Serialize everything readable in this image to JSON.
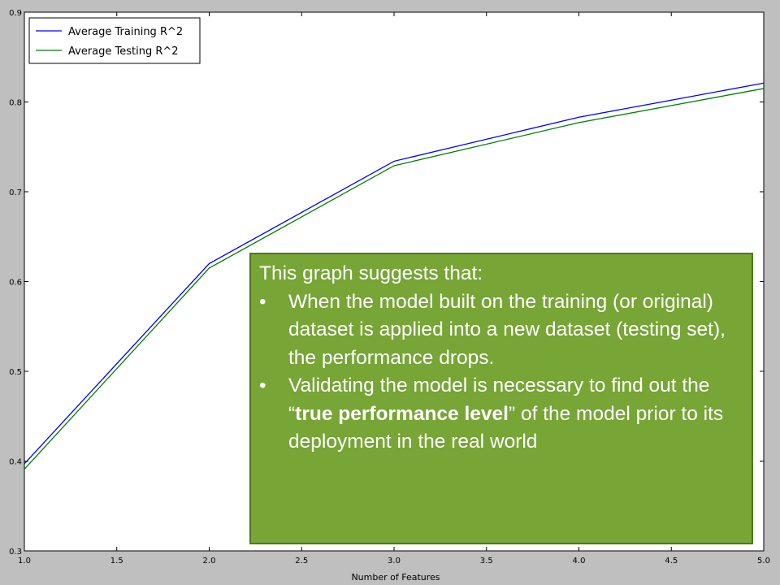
{
  "chart_data": {
    "type": "line",
    "x": [
      1.0,
      2.0,
      3.0,
      4.0,
      5.0
    ],
    "series": [
      {
        "name": "Average Training R^2",
        "color": "#0000ff",
        "values": [
          0.397,
          0.62,
          0.734,
          0.783,
          0.821
        ]
      },
      {
        "name": "Average Testing R^2",
        "color": "#008000",
        "values": [
          0.391,
          0.615,
          0.729,
          0.777,
          0.815
        ]
      }
    ],
    "xlabel": "Number of Features",
    "ylabel": "",
    "xlim": [
      1.0,
      5.0
    ],
    "ylim": [
      0.3,
      0.9
    ],
    "xticks": [
      "1.0",
      "1.5",
      "2.0",
      "2.5",
      "3.0",
      "3.5",
      "4.0",
      "4.5",
      "5.0"
    ],
    "yticks": [
      "0.3",
      "0.4",
      "0.5",
      "0.6",
      "0.7",
      "0.8",
      "0.9"
    ],
    "grid": false,
    "legend_position": "top-left"
  },
  "callout": {
    "heading": "This graph suggests that:",
    "bullet_symbol": "•",
    "bullet1": "When the model built on the training (or original) dataset is applied into a new dataset (testing set), the performance drops.",
    "bullet2_pre": "Validating the model is necessary to find out the “",
    "bullet2_bold": "true performance level",
    "bullet2_post": "” of the model prior to its deployment in the real world"
  }
}
